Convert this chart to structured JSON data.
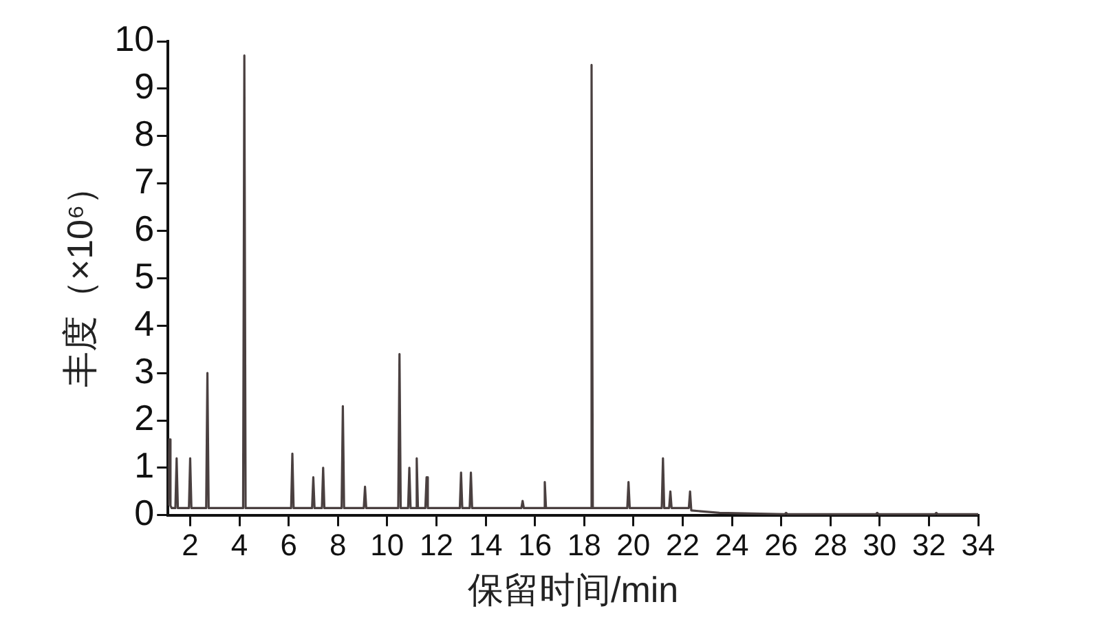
{
  "chart_data": {
    "type": "line",
    "xlabel": "保留时间/min",
    "ylabel": "丰度（×10⁶）",
    "series": [
      {
        "color": "#4a4040",
        "x": [
          1.1,
          1.15,
          1.2,
          1.25,
          1.4,
          1.45,
          1.5,
          1.95,
          2.0,
          2.05,
          2.65,
          2.7,
          2.75,
          3.5,
          4.15,
          4.2,
          4.25,
          5.0,
          6.1,
          6.15,
          6.2,
          6.95,
          7.0,
          7.05,
          7.35,
          7.4,
          7.45,
          8.15,
          8.2,
          8.25,
          9.05,
          9.1,
          9.15,
          10.45,
          10.5,
          10.55,
          10.85,
          10.9,
          10.95,
          11.15,
          11.2,
          11.25,
          11.55,
          11.6,
          11.65,
          12.5,
          12.95,
          13.0,
          13.05,
          13.35,
          13.4,
          13.45,
          14.5,
          15.45,
          15.5,
          15.55,
          16.35,
          16.4,
          16.45,
          18.25,
          18.3,
          18.35,
          19.75,
          19.8,
          19.85,
          21.15,
          21.2,
          21.25,
          21.45,
          21.5,
          21.55,
          22.25,
          22.3,
          22.35,
          23.5,
          26.15,
          26.2,
          26.25,
          29.85,
          29.9,
          29.95,
          32.25,
          32.3,
          32.35,
          34
        ],
        "values": [
          0.2,
          1.6,
          0.2,
          0.15,
          0.15,
          1.2,
          0.15,
          0.15,
          1.2,
          0.15,
          0.15,
          3.0,
          0.15,
          0.15,
          0.15,
          9.7,
          0.15,
          0.15,
          0.15,
          1.3,
          0.15,
          0.15,
          0.8,
          0.15,
          0.15,
          1.0,
          0.15,
          0.15,
          2.3,
          0.15,
          0.15,
          0.6,
          0.15,
          0.15,
          3.4,
          0.15,
          0.15,
          1.0,
          0.15,
          0.15,
          1.2,
          0.15,
          0.15,
          0.8,
          0.15,
          0.15,
          0.15,
          0.9,
          0.15,
          0.15,
          0.9,
          0.15,
          0.15,
          0.15,
          0.3,
          0.15,
          0.15,
          0.7,
          0.15,
          0.15,
          9.5,
          0.15,
          0.15,
          0.7,
          0.15,
          0.15,
          1.2,
          0.15,
          0.15,
          0.5,
          0.15,
          0.15,
          0.5,
          0.1,
          0.05,
          0.02,
          0.05,
          0.02,
          0.02,
          0.05,
          0.02,
          0.02,
          0.05,
          0.02,
          0.02
        ]
      }
    ],
    "xlim": [
      1.1,
      34
    ],
    "xticks": [
      2,
      4,
      6,
      8,
      10,
      12,
      14,
      16,
      18,
      20,
      22,
      24,
      26,
      28,
      30,
      32,
      34
    ],
    "ylim": [
      0,
      10
    ],
    "yticks": [
      0,
      1,
      2,
      3,
      4,
      5,
      6,
      7,
      8,
      9,
      10
    ],
    "grid": false,
    "legend": false
  }
}
